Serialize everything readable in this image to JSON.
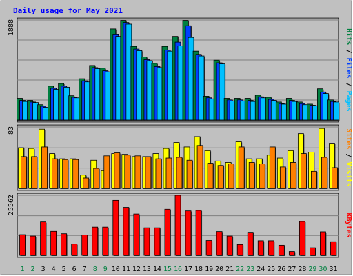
{
  "chart_data": {
    "type": "bar",
    "title": "Daily usage for May 2021",
    "categories": [
      "1",
      "2",
      "3",
      "4",
      "5",
      "6",
      "7",
      "8",
      "9",
      "10",
      "11",
      "12",
      "13",
      "14",
      "15",
      "16",
      "17",
      "18",
      "19",
      "20",
      "21",
      "22",
      "23",
      "24",
      "25",
      "26",
      "27",
      "28",
      "29",
      "30",
      "31"
    ],
    "weekend_days": [
      "1",
      "2",
      "8",
      "9",
      "15",
      "16",
      "22",
      "23",
      "29",
      "30"
    ],
    "colors": {
      "background": "#c0c0c0",
      "hits": "#008040",
      "files": "#0040ff",
      "pages": "#00c0ff",
      "visits": "#ffff00",
      "sites": "#ff8000",
      "kbytes": "#ff0000",
      "weekday_label": "#000000",
      "weekend_label": "#008040",
      "title": "#0000ff"
    },
    "panels": [
      {
        "id": "hits-files-pages",
        "ymax_label": "1888",
        "ylim": [
          0,
          1888
        ],
        "legend": [
          {
            "text": "Hits",
            "color": "#008040"
          },
          {
            "text": "Files",
            "color": "#0040ff"
          },
          {
            "text": "Pages",
            "color": "#00c0ff"
          }
        ],
        "series": [
          {
            "name": "Hits",
            "color": "#008040",
            "values": [
              410,
              370,
              290,
              640,
              690,
              460,
              780,
              1030,
              980,
              1720,
              1880,
              1390,
              1190,
              1070,
              1390,
              1580,
              1880,
              1300,
              450,
              1130,
              410,
              410,
              410,
              470,
              430,
              340,
              410,
              340,
              300,
              590,
              380
            ]
          },
          {
            "name": "Files",
            "color": "#0040ff",
            "values": [
              370,
              340,
              260,
              600,
              640,
              430,
              740,
              990,
              930,
              1610,
              1840,
              1340,
              1140,
              1010,
              1320,
              1470,
              1780,
              1240,
              420,
              1080,
              380,
              380,
              370,
              440,
              390,
              310,
              370,
              310,
              280,
              530,
              350
            ]
          },
          {
            "name": "Pages",
            "color": "#00c0ff",
            "values": [
              350,
              330,
              240,
              580,
              620,
              420,
              720,
              970,
              910,
              1580,
              1810,
              1310,
              1120,
              990,
              1300,
              1400,
              1560,
              1210,
              400,
              1060,
              360,
              360,
              350,
              420,
              370,
              300,
              350,
              290,
              270,
              500,
              340
            ]
          }
        ]
      },
      {
        "id": "visits-sites",
        "ymax_label": "83",
        "ylim": [
          0,
          83
        ],
        "legend": [
          {
            "text": "Sites",
            "color": "#ff8000"
          },
          {
            "text": "Visits",
            "color": "#ffff00"
          }
        ],
        "series": [
          {
            "name": "Visits",
            "color": "#ffff00",
            "values": [
              55,
              54,
              80,
              47,
              40,
              40,
              18,
              38,
              24,
              47,
              46,
              43,
              43,
              47,
              54,
              62,
              56,
              70,
              51,
              37,
              35,
              63,
              40,
              40,
              45,
              41,
              51,
              74,
              49,
              81,
              61
            ]
          },
          {
            "name": "Sites",
            "color": "#ff8000",
            "values": [
              43,
              43,
              56,
              40,
              39,
              39,
              14,
              27,
              44,
              48,
              45,
              44,
              43,
              40,
              41,
              42,
              38,
              58,
              34,
              31,
              33,
              56,
              35,
              33,
              56,
              29,
              35,
              47,
              23,
              42,
              28
            ]
          }
        ]
      },
      {
        "id": "kbytes",
        "ymax_label": "25562",
        "ylim": [
          0,
          25562
        ],
        "legend": [
          {
            "text": "KBytes",
            "color": "#ff0000"
          }
        ],
        "series": [
          {
            "name": "KBytes",
            "color": "#ff0000",
            "values": [
              8800,
              8200,
              14200,
              10200,
              9200,
              4800,
              8700,
              12000,
              12000,
              23400,
              20400,
              17600,
              11700,
              11700,
              19600,
              25562,
              18900,
              19100,
              6300,
              10100,
              8200,
              4600,
              9800,
              6200,
              6200,
              4300,
              1600,
              14400,
              3200,
              10000,
              5800
            ]
          }
        ]
      }
    ]
  }
}
